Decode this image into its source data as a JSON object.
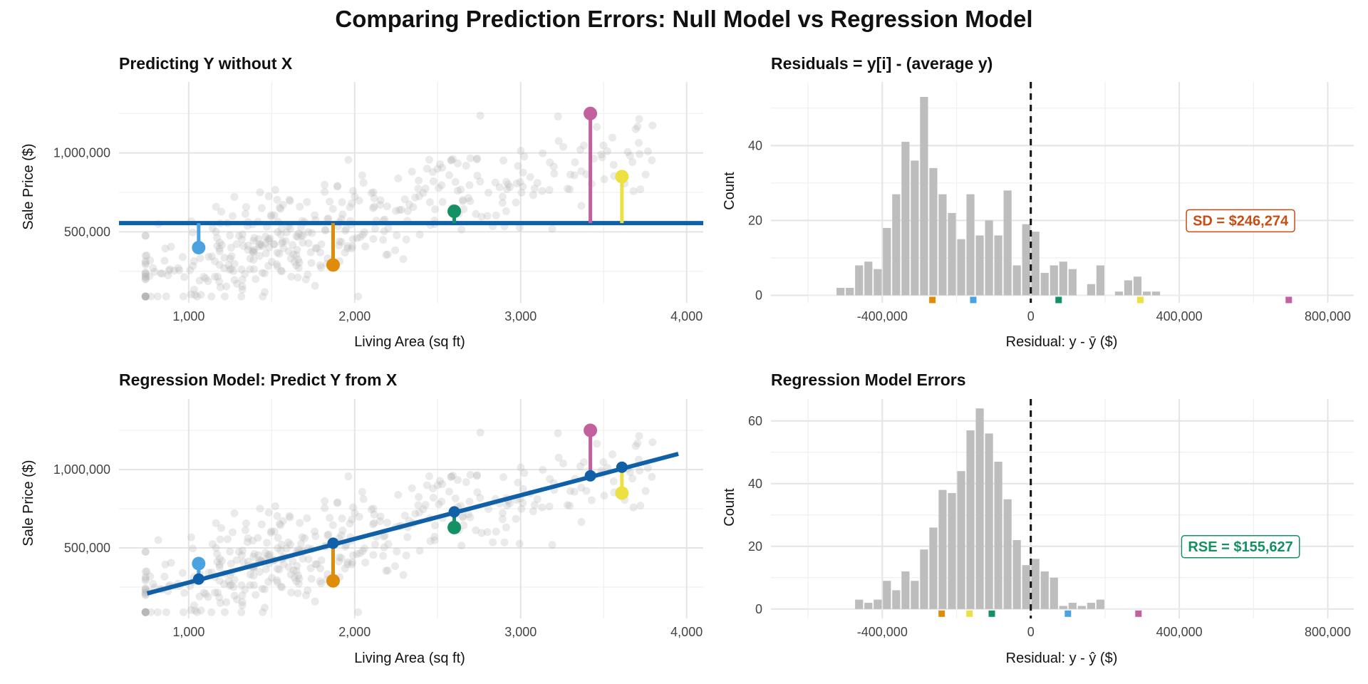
{
  "figure": {
    "title": "Comparing Prediction Errors: Null Model vs Regression Model"
  },
  "colors": {
    "background_points": "#b3b3b3",
    "regression_line": "#1060a8",
    "bars": "#bdbdbd",
    "sd_label": "#c84d13",
    "rse_label": "#149062",
    "zero_line": "#111111"
  },
  "chart_data": [
    {
      "id": "null_model",
      "type": "scatter",
      "title": "Predicting Y without X",
      "xlabel": "Living Area (sq ft)",
      "ylabel": "Sale Price ($)",
      "xlim": [
        580,
        4100
      ],
      "ylim": [
        50000,
        1450000
      ],
      "xticks": [
        1000,
        2000,
        3000,
        4000
      ],
      "xtick_labels": [
        "1,000",
        "2,000",
        "3,000",
        "4,000"
      ],
      "yticks": [
        500000,
        1000000
      ],
      "ytick_labels": [
        "500,000",
        "1,000,000"
      ],
      "mean_line": 555000,
      "highlights": [
        {
          "x": 1060,
          "y": 400000,
          "color": "#4aa3e0"
        },
        {
          "x": 1870,
          "y": 290000,
          "color": "#e08c0b"
        },
        {
          "x": 2600,
          "y": 630000,
          "color": "#139165"
        },
        {
          "x": 3420,
          "y": 1250000,
          "color": "#c3619f"
        },
        {
          "x": 3610,
          "y": 850000,
          "color": "#ede043"
        }
      ]
    },
    {
      "id": "null_residuals",
      "type": "bar",
      "title": "Residuals = y[i] - (average y)",
      "xlabel": "Residual: y - ȳ ($)",
      "ylabel": "Count",
      "xlim": [
        -700000,
        870000
      ],
      "ylim": [
        -2,
        57
      ],
      "xticks": [
        -400000,
        0,
        400000,
        800000
      ],
      "xtick_labels": [
        "-400,000",
        "0",
        "400,000",
        "800,000"
      ],
      "yticks": [
        0,
        20,
        40
      ],
      "ytick_labels": [
        "0",
        "20",
        "40"
      ],
      "bin_start": -525000,
      "bin_width": 25000,
      "values": [
        2,
        2,
        8,
        9,
        7,
        18,
        27,
        41,
        36,
        53,
        34,
        27,
        22,
        15,
        27,
        16,
        20,
        16,
        28,
        8,
        19,
        17,
        6,
        8,
        9,
        7,
        0,
        3,
        8,
        0,
        1,
        4,
        5,
        1,
        1
      ],
      "markers": [
        {
          "x": -265000,
          "color": "#e08c0b"
        },
        {
          "x": -155000,
          "color": "#4aa3e0"
        },
        {
          "x": 75000,
          "color": "#139165"
        },
        {
          "x": 295000,
          "color": "#ede043"
        },
        {
          "x": 695000,
          "color": "#c3619f"
        }
      ],
      "annotation": {
        "text": "SD = $246,274",
        "x": 565000,
        "y": 20,
        "color": "#c84d13"
      }
    },
    {
      "id": "regression_model",
      "type": "scatter",
      "title": "Regression Model: Predict Y from X",
      "xlabel": "Living Area (sq ft)",
      "ylabel": "Sale Price ($)",
      "xlim": [
        580,
        4100
      ],
      "ylim": [
        50000,
        1450000
      ],
      "xticks": [
        1000,
        2000,
        3000,
        4000
      ],
      "xtick_labels": [
        "1,000",
        "2,000",
        "3,000",
        "4,000"
      ],
      "yticks": [
        500000,
        1000000
      ],
      "ytick_labels": [
        "500,000",
        "1,000,000"
      ],
      "fit_line": {
        "x0": 750,
        "y0": 210000,
        "x1": 3950,
        "y1": 1100000
      },
      "highlights": [
        {
          "x": 1060,
          "y": 400000,
          "fit": 301000,
          "color": "#4aa3e0"
        },
        {
          "x": 1870,
          "y": 290000,
          "fit": 530000,
          "color": "#e08c0b"
        },
        {
          "x": 2600,
          "y": 630000,
          "fit": 730000,
          "color": "#139165"
        },
        {
          "x": 3420,
          "y": 1250000,
          "fit": 960000,
          "color": "#c3619f"
        },
        {
          "x": 3610,
          "y": 850000,
          "fit": 1015000,
          "color": "#ede043"
        }
      ]
    },
    {
      "id": "regression_residuals",
      "type": "bar",
      "title": "Regression Model Errors",
      "xlabel": "Residual: y - ŷ ($)",
      "ylabel": "Count",
      "xlim": [
        -700000,
        870000
      ],
      "ylim": [
        -3,
        67
      ],
      "xticks": [
        -400000,
        0,
        400000,
        800000
      ],
      "xtick_labels": [
        "-400,000",
        "0",
        "400,000",
        "800,000"
      ],
      "yticks": [
        0,
        20,
        40,
        60
      ],
      "ytick_labels": [
        "0",
        "20",
        "40",
        "60"
      ],
      "bin_start": -475000,
      "bin_width": 25000,
      "values": [
        3,
        2,
        3,
        9,
        6,
        12,
        9,
        19,
        26,
        38,
        37,
        44,
        57,
        64,
        56,
        47,
        35,
        22,
        14,
        16,
        12,
        10,
        1,
        2,
        1,
        2,
        3
      ],
      "markers": [
        {
          "x": -240000,
          "color": "#e08c0b"
        },
        {
          "x": -165000,
          "color": "#ede043"
        },
        {
          "x": -105000,
          "color": "#139165"
        },
        {
          "x": 100000,
          "color": "#4aa3e0"
        },
        {
          "x": 290000,
          "color": "#c3619f"
        }
      ],
      "annotation": {
        "text": "RSE = $155,627",
        "x": 565000,
        "y": 20,
        "color": "#149062"
      }
    }
  ]
}
